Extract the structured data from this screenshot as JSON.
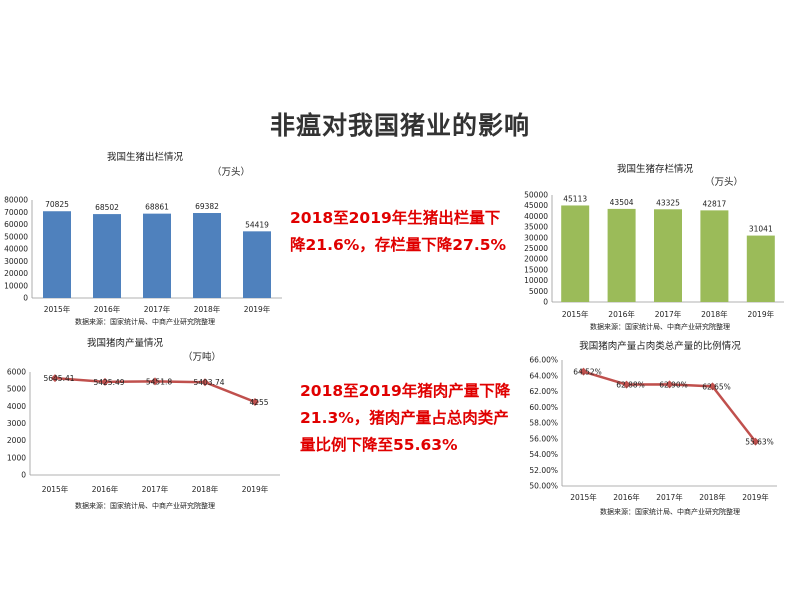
{
  "title": "非瘟对我国猪业的影响",
  "callouts": {
    "top": [
      "2018至2019年生猪出栏量下",
      "降21.6%，存栏量下降27.5%"
    ],
    "bottom": [
      "2018至2019年猪肉产量下降",
      "21.3%，猪肉产量占总肉类产",
      "量比例下降至55.63%"
    ]
  },
  "chart_data": [
    {
      "type": "bar",
      "title": "我国生猪出栏情况",
      "unit": "（万头）",
      "categories": [
        "2015年",
        "2016年",
        "2017年",
        "2018年",
        "2019年"
      ],
      "values": [
        70825,
        68502,
        68861,
        69382,
        54419
      ],
      "value_labels": [
        "70825",
        "68502",
        "68861",
        "69382",
        "54419"
      ],
      "ylim": [
        0,
        80000
      ],
      "yticks": [
        "0",
        "10000",
        "20000",
        "30000",
        "40000",
        "50000",
        "60000",
        "70000",
        "80000"
      ],
      "color": "#4f81bd",
      "source": "数据来源：国家统计局、中商产业研究院整理"
    },
    {
      "type": "bar",
      "title": "我国生猪存栏情况",
      "unit": "（万头）",
      "categories": [
        "2015年",
        "2016年",
        "2017年",
        "2018年",
        "2019年"
      ],
      "values": [
        45113,
        43504,
        43325,
        42817,
        31041
      ],
      "value_labels": [
        "45113",
        "43504",
        "43325",
        "42817",
        "31041"
      ],
      "ylim": [
        0,
        50000
      ],
      "yticks": [
        "0",
        "5000",
        "10000",
        "15000",
        "20000",
        "25000",
        "30000",
        "35000",
        "40000",
        "45000",
        "50000"
      ],
      "color": "#9bbb59",
      "source": "数据来源：国家统计局、中商产业研究院整理"
    },
    {
      "type": "line",
      "title": "我国猪肉产量情况",
      "unit": "（万吨）",
      "categories": [
        "2015年",
        "2016年",
        "2017年",
        "2018年",
        "2019年"
      ],
      "values": [
        5645.41,
        5425.49,
        5451.8,
        5403.74,
        4255
      ],
      "value_labels": [
        "5645.41",
        "5425.49",
        "5451.8",
        "5403.74",
        "4255"
      ],
      "ylim": [
        0,
        6000
      ],
      "yticks": [
        "0",
        "1000",
        "2000",
        "3000",
        "4000",
        "5000",
        "6000"
      ],
      "color": "#c0504d",
      "source": "数据来源：国家统计局、中商产业研究院整理"
    },
    {
      "type": "line",
      "title": "我国猪肉产量占肉类总产量的比例情况",
      "unit": "",
      "categories": [
        "2015年",
        "2016年",
        "2017年",
        "2018年",
        "2019年"
      ],
      "values": [
        64.52,
        62.88,
        62.9,
        62.65,
        55.63
      ],
      "value_labels": [
        "64.52%",
        "62.88%",
        "62.90%",
        "62.65%",
        "55.63%"
      ],
      "ylim": [
        50,
        66
      ],
      "yticks": [
        "50.00%",
        "52.00%",
        "54.00%",
        "56.00%",
        "58.00%",
        "60.00%",
        "62.00%",
        "64.00%",
        "66.00%"
      ],
      "color": "#c0504d",
      "source": "数据来源：国家统计局、中商产业研究院整理"
    }
  ]
}
